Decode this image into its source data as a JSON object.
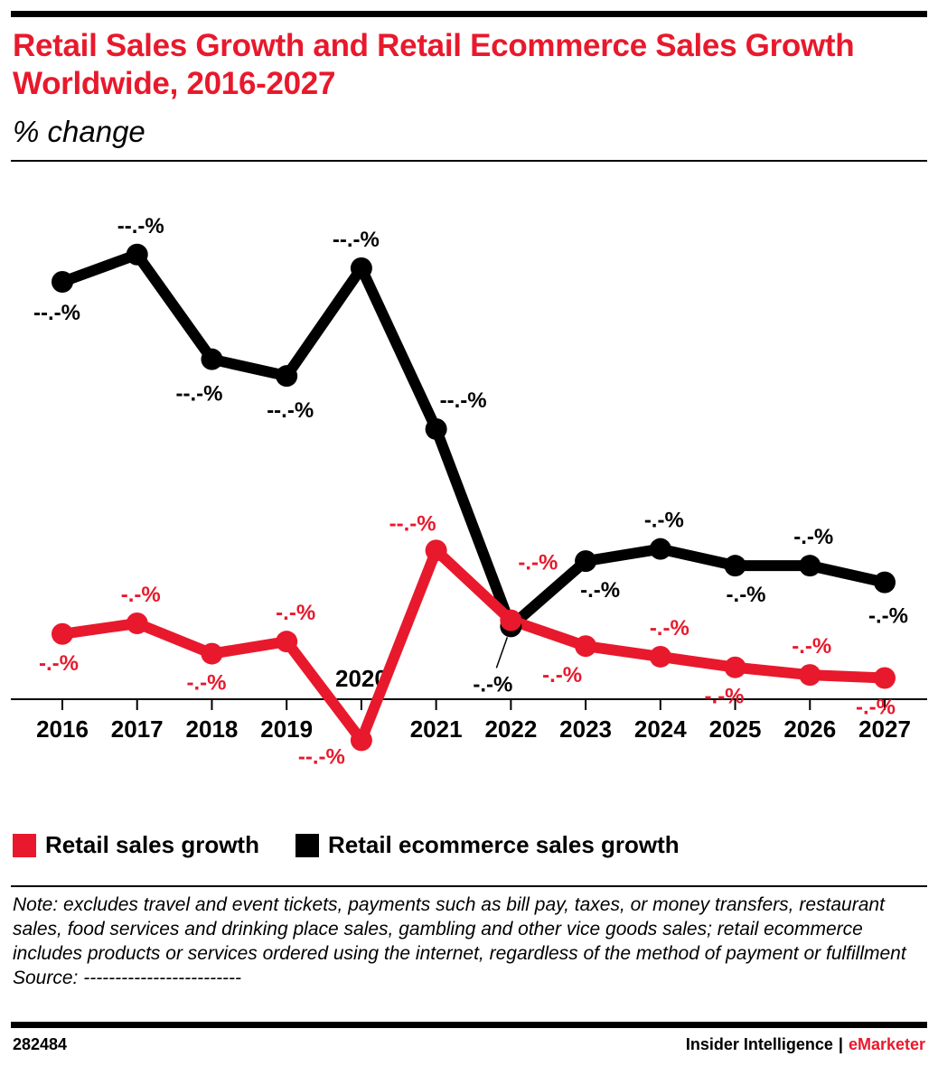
{
  "header": {
    "title": "Retail Sales Growth and Retail Ecommerce Sales Growth Worldwide, 2016-2027",
    "subtitle": "% change"
  },
  "chart_data": {
    "type": "line",
    "categories": [
      "2016",
      "2017",
      "2018",
      "2019",
      "2020",
      "2021",
      "2022",
      "2023",
      "2024",
      "2025",
      "2026",
      "2027"
    ],
    "series": [
      {
        "name": "Retail sales growth",
        "color": "#e8192c",
        "values": [
          4.3,
          5.0,
          3.0,
          3.8,
          -2.7,
          9.8,
          5.2,
          3.5,
          2.8,
          2.1,
          1.6,
          1.4
        ],
        "labels": [
          "-.-%",
          "-.-%",
          "-.-%",
          "-.-%",
          "--.-%",
          "--.-%",
          "-.-%",
          "-.-%",
          "-.-%",
          "-.-%",
          "-.-%",
          "-.-%"
        ]
      },
      {
        "name": "Retail ecommerce sales growth",
        "color": "#000000",
        "values": [
          27.5,
          29.3,
          22.4,
          21.3,
          28.4,
          17.8,
          4.8,
          9.1,
          9.9,
          8.8,
          8.8,
          7.7
        ],
        "labels": [
          "--.-%",
          "--.-%",
          "--.-%",
          "--.-%",
          "--.-%",
          "--.-%",
          "-.-%",
          "-.-%",
          "-.-%",
          "-.-%",
          "-.-%",
          "-.-%"
        ]
      }
    ],
    "ylim": [
      -5,
      35
    ],
    "grid": false,
    "legend": "bottom-left"
  },
  "legend": {
    "items": [
      {
        "label": "Retail sales growth",
        "color": "#e8192c"
      },
      {
        "label": "Retail ecommerce sales growth",
        "color": "#000000"
      }
    ]
  },
  "footer": {
    "note": "Note: excludes travel and event tickets, payments such as bill pay, taxes, or money transfers, restaurant sales, food services and drinking place sales, gambling and other vice goods sales; retail ecommerce includes products or services ordered using the internet, regardless of the method of payment or fulfillment",
    "source": "Source: -------------------------",
    "chart_id": "282484",
    "brand_primary": "Insider Intelligence",
    "brand_separator": "|",
    "brand_secondary": "eMarketer"
  }
}
